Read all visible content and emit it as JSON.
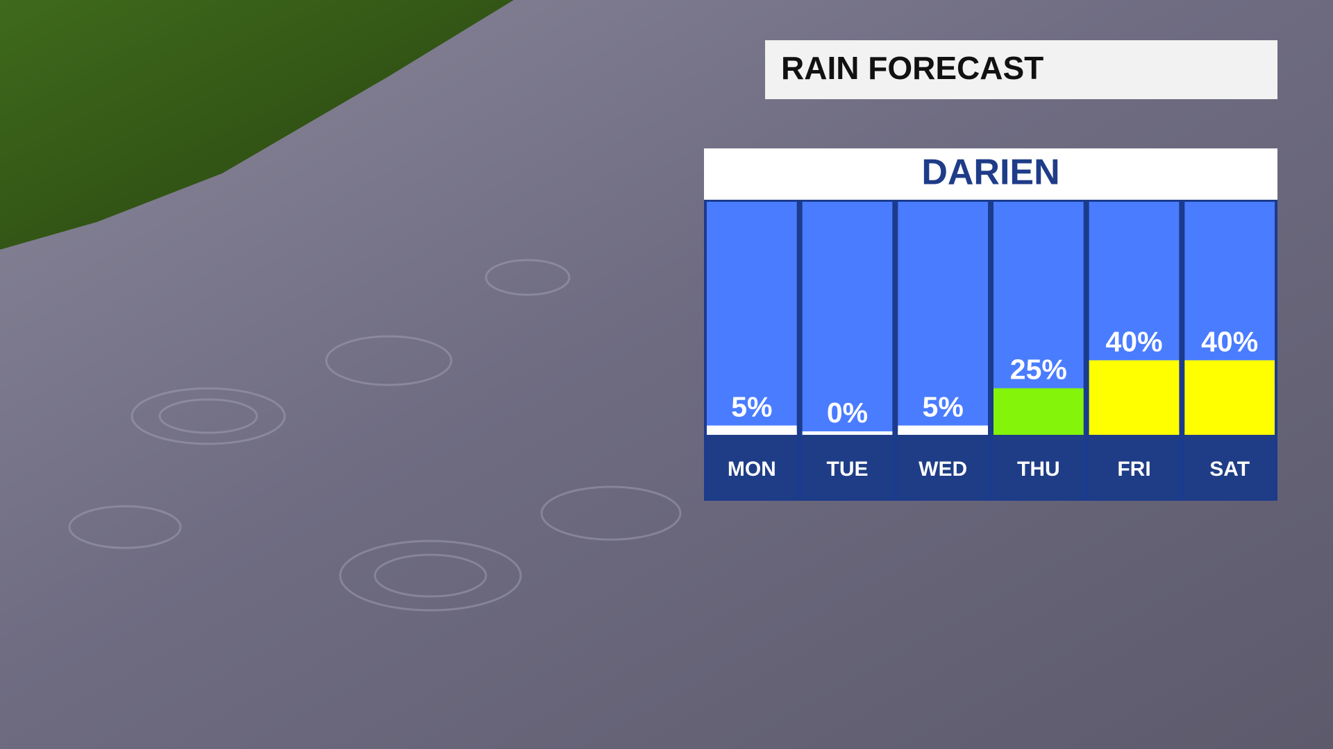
{
  "chart_data": {
    "type": "bar",
    "title": "RAIN FORECAST",
    "subtitle": "DARIEN",
    "categories": [
      "MON",
      "TUE",
      "WED",
      "THU",
      "FRI",
      "SAT"
    ],
    "values": [
      5,
      0,
      5,
      25,
      40,
      40
    ],
    "value_labels": [
      "5%",
      "0%",
      "5%",
      "25%",
      "40%",
      "40%"
    ],
    "colors": [
      "#ffffff",
      "#ffffff",
      "#ffffff",
      "#84f50a",
      "#ffff00",
      "#ffff00"
    ],
    "ylim": [
      0,
      125
    ]
  }
}
